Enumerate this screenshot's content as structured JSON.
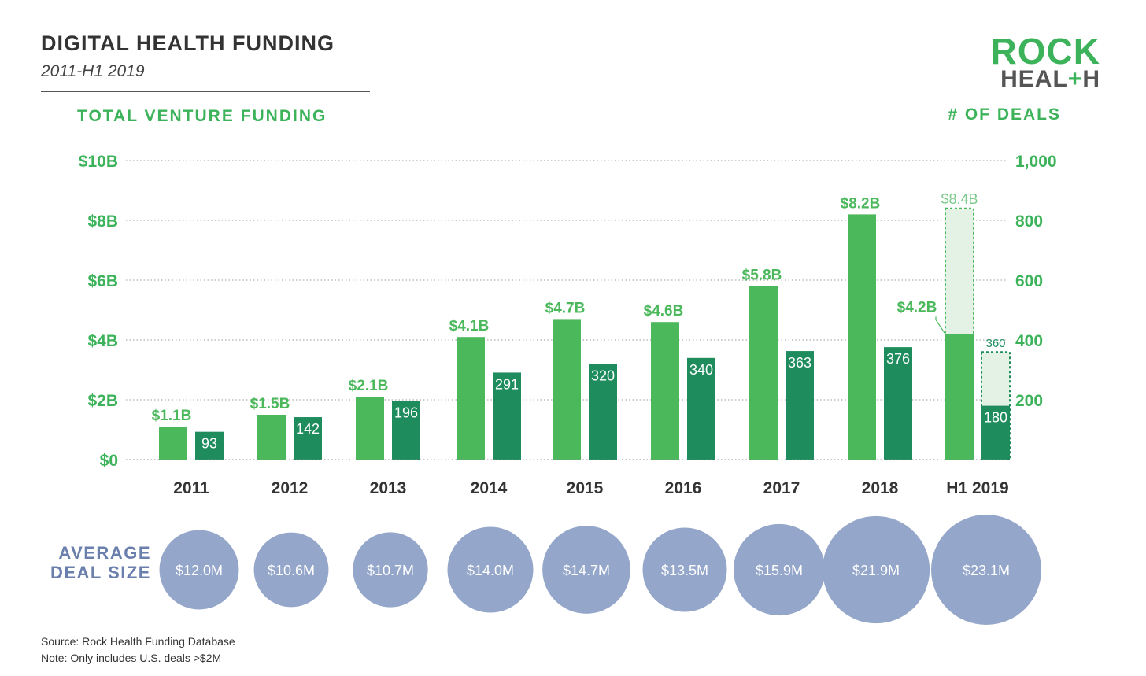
{
  "header": {
    "title": "DIGITAL HEALTH FUNDING",
    "subtitle": "2011-H1 2019"
  },
  "logo": {
    "line1": "ROCK",
    "line2_a": "HEAL",
    "line2_plus": "+",
    "line2_b": "H"
  },
  "colors": {
    "funding_green": "#4cb85c",
    "deals_teal": "#1f8c5e",
    "projected_fill": "#e3f2e4",
    "axis_green": "#3cb35a",
    "bubble": "#94a6c9",
    "bubble_label": "#6b7fad"
  },
  "chart_data": {
    "type": "bar",
    "title": "TOTAL VENTURE FUNDING",
    "categories": [
      "2011",
      "2012",
      "2013",
      "2014",
      "2015",
      "2016",
      "2017",
      "2018",
      "H1 2019"
    ],
    "left_axis": {
      "label": "TOTAL VENTURE FUNDING",
      "range": [
        0,
        10
      ],
      "ticks": [
        0,
        2,
        4,
        6,
        8,
        10
      ],
      "tick_labels": [
        "$0",
        "$2B",
        "$4B",
        "$6B",
        "$8B",
        "$10B"
      ]
    },
    "right_axis": {
      "label": "# OF DEALS",
      "range": [
        0,
        1000
      ],
      "ticks": [
        200,
        400,
        600,
        800,
        1000
      ],
      "tick_labels": [
        "200",
        "400",
        "600",
        "800",
        "1,000"
      ]
    },
    "series": [
      {
        "name": "Total venture funding ($B)",
        "axis": "left",
        "values": [
          1.1,
          1.5,
          2.1,
          4.1,
          4.7,
          4.6,
          5.8,
          8.2,
          4.2
        ],
        "labels": [
          "$1.1B",
          "$1.5B",
          "$2.1B",
          "$4.1B",
          "$4.7B",
          "$4.6B",
          "$5.8B",
          "$8.2B",
          "$4.2B"
        ]
      },
      {
        "name": "# of deals",
        "axis": "right",
        "values": [
          93,
          142,
          196,
          291,
          320,
          340,
          363,
          376,
          180
        ],
        "labels": [
          "93",
          "142",
          "196",
          "291",
          "320",
          "340",
          "363",
          "376",
          "180"
        ]
      }
    ],
    "projection": {
      "category": "H1 2019",
      "funding": 8.4,
      "funding_label": "$8.4B",
      "deals": 360,
      "deals_label": "360"
    },
    "average_deal_size": {
      "label": "AVERAGE DEAL SIZE",
      "values": [
        12.0,
        10.6,
        10.7,
        14.0,
        14.7,
        13.5,
        15.9,
        21.9,
        23.1
      ],
      "labels": [
        "$12.0M",
        "$10.6M",
        "$10.7M",
        "$14.0M",
        "$14.7M",
        "$13.5M",
        "$15.9M",
        "$21.9M",
        "$23.1M"
      ]
    }
  },
  "footer": {
    "source": "Source: Rock Health Funding Database",
    "note": "Note: Only includes U.S. deals >$2M"
  }
}
